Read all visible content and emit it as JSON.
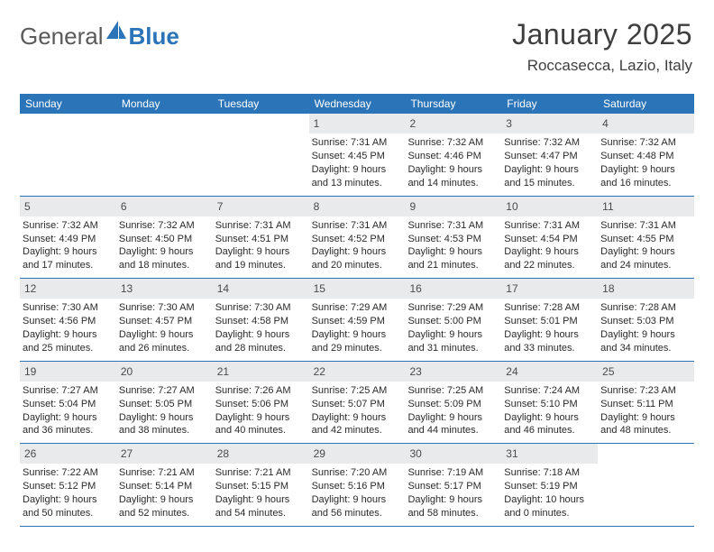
{
  "logo": {
    "text_gray": "General",
    "text_blue": "Blue"
  },
  "header": {
    "month_title": "January 2025",
    "location": "Roccasecca, Lazio, Italy"
  },
  "colors": {
    "header_bar": "#2b74b8",
    "daynum_bg": "#e9eaeb",
    "text_dark": "#2a2a2a",
    "text_mid": "#4a4a4a",
    "logo_gray": "#5a5a5a",
    "logo_blue": "#2b74b8",
    "background": "#ffffff",
    "row_border": "#2b74b8"
  },
  "weekdays": [
    "Sunday",
    "Monday",
    "Tuesday",
    "Wednesday",
    "Thursday",
    "Friday",
    "Saturday"
  ],
  "weeks": [
    [
      {
        "empty": true
      },
      {
        "empty": true
      },
      {
        "empty": true
      },
      {
        "num": "1",
        "sunrise": "Sunrise: 7:31 AM",
        "sunset": "Sunset: 4:45 PM",
        "day1": "Daylight: 9 hours",
        "day2": "and 13 minutes."
      },
      {
        "num": "2",
        "sunrise": "Sunrise: 7:32 AM",
        "sunset": "Sunset: 4:46 PM",
        "day1": "Daylight: 9 hours",
        "day2": "and 14 minutes."
      },
      {
        "num": "3",
        "sunrise": "Sunrise: 7:32 AM",
        "sunset": "Sunset: 4:47 PM",
        "day1": "Daylight: 9 hours",
        "day2": "and 15 minutes."
      },
      {
        "num": "4",
        "sunrise": "Sunrise: 7:32 AM",
        "sunset": "Sunset: 4:48 PM",
        "day1": "Daylight: 9 hours",
        "day2": "and 16 minutes."
      }
    ],
    [
      {
        "num": "5",
        "sunrise": "Sunrise: 7:32 AM",
        "sunset": "Sunset: 4:49 PM",
        "day1": "Daylight: 9 hours",
        "day2": "and 17 minutes."
      },
      {
        "num": "6",
        "sunrise": "Sunrise: 7:32 AM",
        "sunset": "Sunset: 4:50 PM",
        "day1": "Daylight: 9 hours",
        "day2": "and 18 minutes."
      },
      {
        "num": "7",
        "sunrise": "Sunrise: 7:31 AM",
        "sunset": "Sunset: 4:51 PM",
        "day1": "Daylight: 9 hours",
        "day2": "and 19 minutes."
      },
      {
        "num": "8",
        "sunrise": "Sunrise: 7:31 AM",
        "sunset": "Sunset: 4:52 PM",
        "day1": "Daylight: 9 hours",
        "day2": "and 20 minutes."
      },
      {
        "num": "9",
        "sunrise": "Sunrise: 7:31 AM",
        "sunset": "Sunset: 4:53 PM",
        "day1": "Daylight: 9 hours",
        "day2": "and 21 minutes."
      },
      {
        "num": "10",
        "sunrise": "Sunrise: 7:31 AM",
        "sunset": "Sunset: 4:54 PM",
        "day1": "Daylight: 9 hours",
        "day2": "and 22 minutes."
      },
      {
        "num": "11",
        "sunrise": "Sunrise: 7:31 AM",
        "sunset": "Sunset: 4:55 PM",
        "day1": "Daylight: 9 hours",
        "day2": "and 24 minutes."
      }
    ],
    [
      {
        "num": "12",
        "sunrise": "Sunrise: 7:30 AM",
        "sunset": "Sunset: 4:56 PM",
        "day1": "Daylight: 9 hours",
        "day2": "and 25 minutes."
      },
      {
        "num": "13",
        "sunrise": "Sunrise: 7:30 AM",
        "sunset": "Sunset: 4:57 PM",
        "day1": "Daylight: 9 hours",
        "day2": "and 26 minutes."
      },
      {
        "num": "14",
        "sunrise": "Sunrise: 7:30 AM",
        "sunset": "Sunset: 4:58 PM",
        "day1": "Daylight: 9 hours",
        "day2": "and 28 minutes."
      },
      {
        "num": "15",
        "sunrise": "Sunrise: 7:29 AM",
        "sunset": "Sunset: 4:59 PM",
        "day1": "Daylight: 9 hours",
        "day2": "and 29 minutes."
      },
      {
        "num": "16",
        "sunrise": "Sunrise: 7:29 AM",
        "sunset": "Sunset: 5:00 PM",
        "day1": "Daylight: 9 hours",
        "day2": "and 31 minutes."
      },
      {
        "num": "17",
        "sunrise": "Sunrise: 7:28 AM",
        "sunset": "Sunset: 5:01 PM",
        "day1": "Daylight: 9 hours",
        "day2": "and 33 minutes."
      },
      {
        "num": "18",
        "sunrise": "Sunrise: 7:28 AM",
        "sunset": "Sunset: 5:03 PM",
        "day1": "Daylight: 9 hours",
        "day2": "and 34 minutes."
      }
    ],
    [
      {
        "num": "19",
        "sunrise": "Sunrise: 7:27 AM",
        "sunset": "Sunset: 5:04 PM",
        "day1": "Daylight: 9 hours",
        "day2": "and 36 minutes."
      },
      {
        "num": "20",
        "sunrise": "Sunrise: 7:27 AM",
        "sunset": "Sunset: 5:05 PM",
        "day1": "Daylight: 9 hours",
        "day2": "and 38 minutes."
      },
      {
        "num": "21",
        "sunrise": "Sunrise: 7:26 AM",
        "sunset": "Sunset: 5:06 PM",
        "day1": "Daylight: 9 hours",
        "day2": "and 40 minutes."
      },
      {
        "num": "22",
        "sunrise": "Sunrise: 7:25 AM",
        "sunset": "Sunset: 5:07 PM",
        "day1": "Daylight: 9 hours",
        "day2": "and 42 minutes."
      },
      {
        "num": "23",
        "sunrise": "Sunrise: 7:25 AM",
        "sunset": "Sunset: 5:09 PM",
        "day1": "Daylight: 9 hours",
        "day2": "and 44 minutes."
      },
      {
        "num": "24",
        "sunrise": "Sunrise: 7:24 AM",
        "sunset": "Sunset: 5:10 PM",
        "day1": "Daylight: 9 hours",
        "day2": "and 46 minutes."
      },
      {
        "num": "25",
        "sunrise": "Sunrise: 7:23 AM",
        "sunset": "Sunset: 5:11 PM",
        "day1": "Daylight: 9 hours",
        "day2": "and 48 minutes."
      }
    ],
    [
      {
        "num": "26",
        "sunrise": "Sunrise: 7:22 AM",
        "sunset": "Sunset: 5:12 PM",
        "day1": "Daylight: 9 hours",
        "day2": "and 50 minutes."
      },
      {
        "num": "27",
        "sunrise": "Sunrise: 7:21 AM",
        "sunset": "Sunset: 5:14 PM",
        "day1": "Daylight: 9 hours",
        "day2": "and 52 minutes."
      },
      {
        "num": "28",
        "sunrise": "Sunrise: 7:21 AM",
        "sunset": "Sunset: 5:15 PM",
        "day1": "Daylight: 9 hours",
        "day2": "and 54 minutes."
      },
      {
        "num": "29",
        "sunrise": "Sunrise: 7:20 AM",
        "sunset": "Sunset: 5:16 PM",
        "day1": "Daylight: 9 hours",
        "day2": "and 56 minutes."
      },
      {
        "num": "30",
        "sunrise": "Sunrise: 7:19 AM",
        "sunset": "Sunset: 5:17 PM",
        "day1": "Daylight: 9 hours",
        "day2": "and 58 minutes."
      },
      {
        "num": "31",
        "sunrise": "Sunrise: 7:18 AM",
        "sunset": "Sunset: 5:19 PM",
        "day1": "Daylight: 10 hours",
        "day2": "and 0 minutes."
      },
      {
        "empty": true
      }
    ]
  ]
}
